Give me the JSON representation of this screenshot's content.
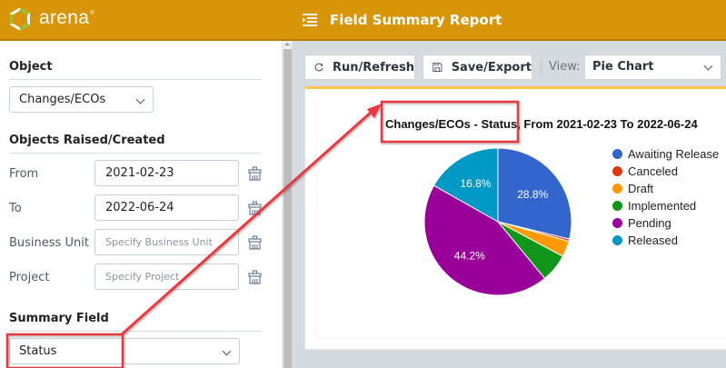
{
  "header": {
    "logo_text": "arena",
    "logo_reg": "®",
    "title": "Field Summary Report",
    "bg_color": "#d89508"
  },
  "left_panel": {
    "object_section": {
      "heading": "Object",
      "selected": "Changes/ECOs"
    },
    "raised_section": {
      "heading": "Objects Raised/Created",
      "fields": [
        {
          "label": "From",
          "value": "2021-02-23",
          "placeholder": ""
        },
        {
          "label": "To",
          "value": "2022-06-24",
          "placeholder": ""
        },
        {
          "label": "Business Unit",
          "value": "",
          "placeholder": "Specify Business Unit"
        },
        {
          "label": "Project",
          "value": "",
          "placeholder": "Specify Project"
        }
      ]
    },
    "summary_section": {
      "heading": "Summary Field",
      "selected": "Status"
    }
  },
  "toolbar": {
    "run_label": "Run/Refresh",
    "save_label": "Save/Export",
    "view_label": "View:",
    "view_selected": "Pie Chart"
  },
  "chart_data": {
    "type": "pie",
    "title": "Changes/ECOs - Status, From 2021-02-23 To 2022-06-24",
    "categories": [
      "Awaiting Release",
      "Canceled",
      "Draft",
      "Implemented",
      "Pending",
      "Released"
    ],
    "values": [
      28.8,
      0.5,
      3.5,
      6.2,
      44.2,
      16.8
    ],
    "labels_shown": [
      "28.8%",
      "",
      "",
      "",
      "44.2%",
      "16.8%"
    ],
    "colors": [
      "#3366cc",
      "#dc3912",
      "#ff9900",
      "#109618",
      "#990099",
      "#0099c6"
    ],
    "legend_position": "right",
    "start_angle": 0,
    "direction": "clockwise"
  },
  "annotations": {
    "color": "#e8393f"
  }
}
